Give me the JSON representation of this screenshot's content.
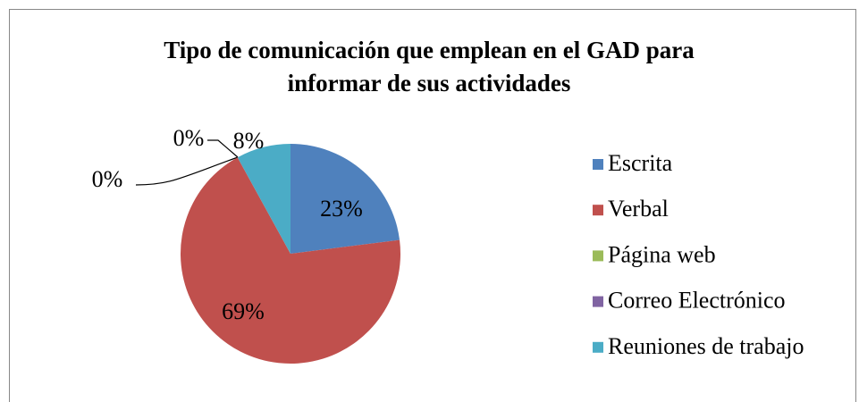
{
  "chart_data": {
    "type": "pie",
    "title": "Tipo de comunicación que emplean en el GAD para informar de sus actividades",
    "categories": [
      "Escrita",
      "Verbal",
      "Página web",
      "Correo Electrónico",
      "Reuniones de trabajo"
    ],
    "values": [
      23,
      69,
      0,
      0,
      8
    ],
    "value_labels": [
      "23%",
      "69%",
      "0%",
      "0%",
      "8%"
    ],
    "colors": [
      "#4f81bd",
      "#c0504d",
      "#9bbb59",
      "#8064a2",
      "#4bacc6"
    ],
    "legend": "right"
  }
}
